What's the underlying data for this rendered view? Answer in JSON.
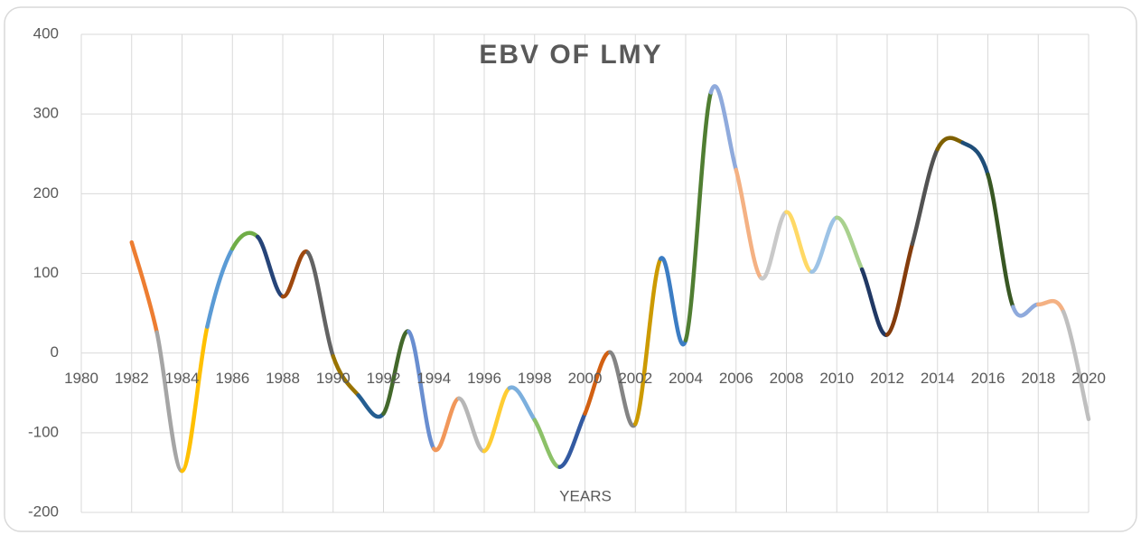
{
  "chart_data": {
    "type": "line",
    "title": "EBV OF LMY",
    "x_label": "YEARS",
    "x": [
      1982,
      1983,
      1984,
      1985,
      1986,
      1987,
      1988,
      1989,
      1990,
      1991,
      1992,
      1993,
      1994,
      1995,
      1996,
      1997,
      1998,
      1999,
      2000,
      2001,
      2002,
      2003,
      2004,
      2005,
      2006,
      2007,
      2008,
      2009,
      2010,
      2011,
      2012,
      2013,
      2014,
      2015,
      2016,
      2017,
      2018,
      2019,
      2020
    ],
    "values": [
      139,
      26,
      -148,
      33,
      131,
      146,
      71,
      126,
      -4,
      -53,
      -76,
      27,
      -120,
      -57,
      -123,
      -44,
      -84,
      -143,
      -76,
      1,
      -89,
      118,
      16,
      327,
      230,
      94,
      177,
      102,
      170,
      105,
      23,
      137,
      256,
      264,
      224,
      58,
      61,
      52,
      -83
    ],
    "segment_colors": [
      "#ED7D31",
      "#A5A5A5",
      "#FFC000",
      "#5B9BD5",
      "#70AD47",
      "#264478",
      "#9E480E",
      "#636363",
      "#997300",
      "#255E91",
      "#43682B",
      "#698ED0",
      "#F1975A",
      "#B7B7B7",
      "#FFCD33",
      "#7CAFDD",
      "#8CC168",
      "#335AA1",
      "#D26012",
      "#848484",
      "#CC9A00",
      "#3C7DC4",
      "#507E32",
      "#8FAADC",
      "#F4B183",
      "#C9C9C9",
      "#FFD966",
      "#9DC3E6",
      "#A9D18E",
      "#203864",
      "#843C0C",
      "#525252",
      "#7F6000",
      "#1F4E79",
      "#385723",
      "#8FAADC",
      "#F4B183",
      "#BFBFBF"
    ],
    "xlim": [
      1980,
      2020
    ],
    "xticks": [
      1980,
      1982,
      1984,
      1986,
      1988,
      1990,
      1992,
      1994,
      1996,
      1998,
      2000,
      2002,
      2004,
      2006,
      2008,
      2010,
      2012,
      2014,
      2016,
      2018,
      2020
    ],
    "ylim": [
      -200,
      400
    ],
    "yticks": [
      -200,
      -100,
      0,
      100,
      200,
      300,
      400
    ],
    "grid": true
  }
}
